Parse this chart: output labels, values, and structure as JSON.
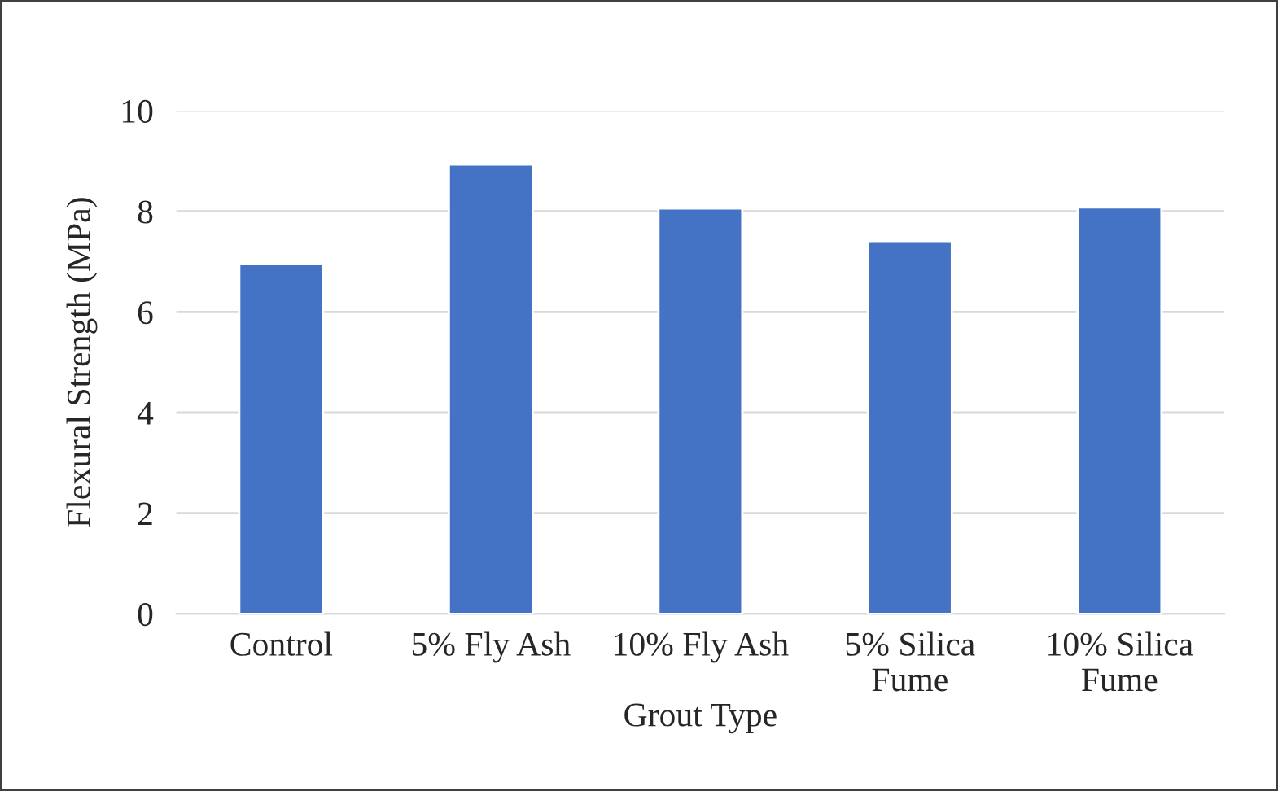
{
  "chart_data": {
    "type": "bar",
    "xlabel": "Grout Type",
    "ylabel": "Flexural Strength (MPa)",
    "categories": [
      "Control",
      "5% Fly Ash",
      "10% Fly Ash",
      "5% Silica\nFume",
      "10% Silica\nFume"
    ],
    "values": [
      6.95,
      8.93,
      8.06,
      7.41,
      8.08
    ],
    "color": "#4472c4",
    "ylim": [
      0,
      10
    ],
    "yticks": [
      0,
      2,
      4,
      6,
      8,
      10
    ],
    "grid": "y",
    "legend": false
  }
}
